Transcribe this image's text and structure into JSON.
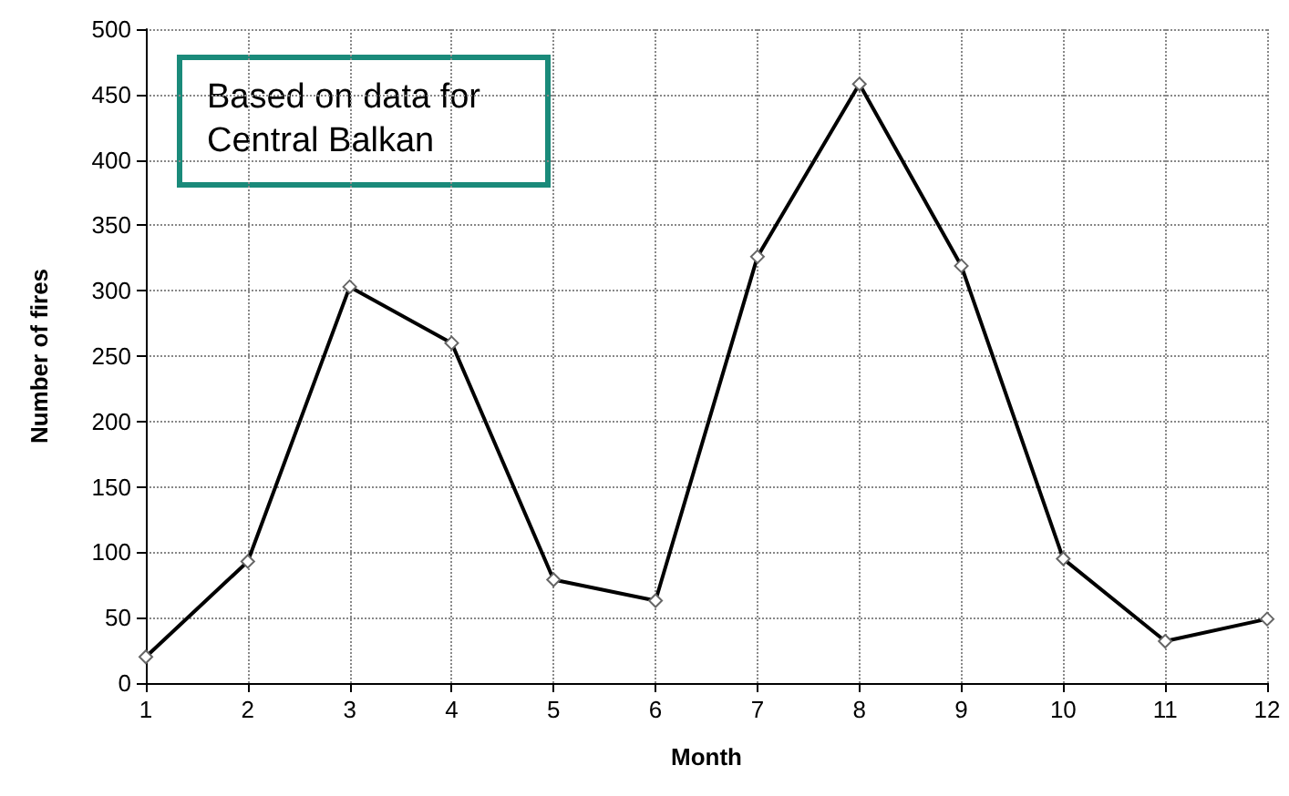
{
  "chart_data": {
    "type": "line",
    "xlabel": "Month",
    "ylabel": "Number of fires",
    "x": [
      1,
      2,
      3,
      4,
      5,
      6,
      7,
      8,
      9,
      10,
      11,
      12
    ],
    "series": [
      {
        "color": "#000000",
        "values": [
          20,
          93,
          303,
          260,
          79,
          63,
          326,
          458,
          319,
          95,
          32,
          49
        ]
      }
    ],
    "xlim": [
      1,
      12
    ],
    "xticks": [
      1,
      2,
      3,
      4,
      5,
      6,
      7,
      8,
      9,
      10,
      11,
      12
    ],
    "ylim": [
      0,
      500
    ],
    "yticks": [
      0,
      50,
      100,
      150,
      200,
      250,
      300,
      350,
      400,
      450,
      500
    ],
    "grid": true,
    "marker": "diamond",
    "line_style": "solid",
    "annotations": [
      "Based on data for\nCentral Balkan"
    ]
  }
}
